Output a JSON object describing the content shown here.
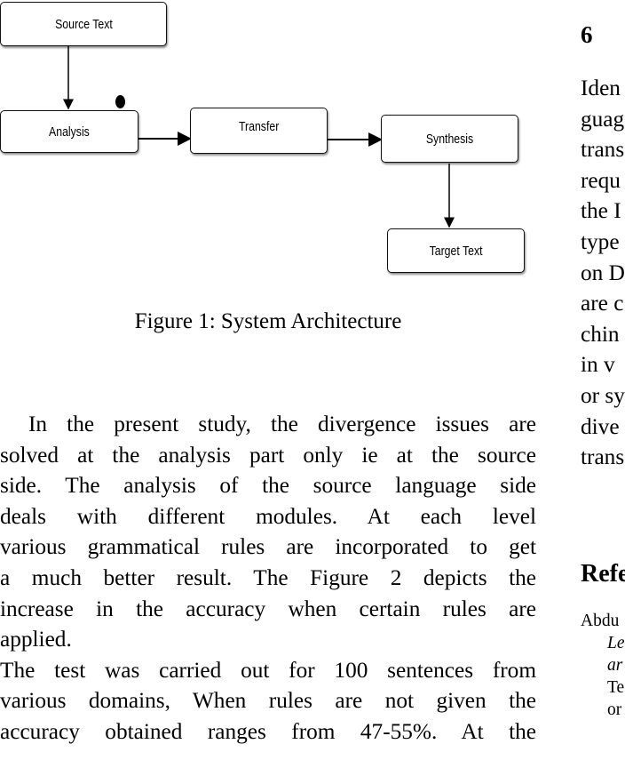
{
  "diagram": {
    "nodes": [
      {
        "id": "source",
        "label": "Source Text"
      },
      {
        "id": "analysis",
        "label": "Analysis"
      },
      {
        "id": "transfer",
        "label": "Transfer"
      },
      {
        "id": "synthesis",
        "label": "Synthesis"
      },
      {
        "id": "target",
        "label": "Target Text"
      }
    ],
    "edges": [
      {
        "from": "source",
        "to": "analysis"
      },
      {
        "from": "analysis",
        "to": "transfer"
      },
      {
        "from": "transfer",
        "to": "synthesis"
      },
      {
        "from": "synthesis",
        "to": "target"
      }
    ],
    "caption": "Figure 1: System Architecture"
  },
  "left_column": {
    "paragraph1": [
      "In the present study, the divergence issues are",
      "solved at the analysis part only ie at the source",
      "side.  The analysis of the source language side",
      "deals with different modules.   At each level",
      "various grammatical rules are incorporated to get",
      "a much better result.  The Figure 2 depicts the",
      "increase in the accuracy when certain rules are",
      "applied."
    ],
    "paragraph2": [
      "The test was carried out for 100 sentences from",
      "various domains, When rules are not given the",
      "accuracy obtained ranges from 47-55%.  At the"
    ]
  },
  "right_column": {
    "section_number": "6",
    "lines": [
      "Iden",
      "guag",
      "trans",
      "requ",
      "the I",
      "type",
      "on D",
      "are c",
      "chin",
      "in v",
      "or sy",
      "dive",
      "trans"
    ],
    "references_heading": "Refe",
    "ref_lines": [
      {
        "text": "Abdu",
        "indent": false,
        "italic": false
      },
      {
        "text": "Le",
        "indent": true,
        "italic": true
      },
      {
        "text": "ar",
        "indent": true,
        "italic": true
      },
      {
        "text": "Te",
        "indent": true,
        "italic": false
      },
      {
        "text": "or",
        "indent": true,
        "italic": false
      }
    ]
  }
}
